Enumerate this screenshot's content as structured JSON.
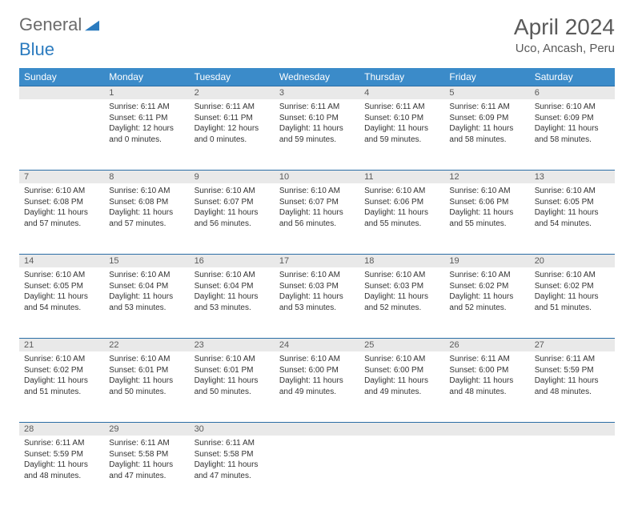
{
  "logo": {
    "text_gray": "General",
    "text_blue": "Blue"
  },
  "header": {
    "month": "April 2024",
    "location": "Uco, Ancash, Peru"
  },
  "colors": {
    "header_bg": "#3b8bc9",
    "header_text": "#ffffff",
    "daynum_bg": "#e9e9e9",
    "daynum_text": "#5a5a5a",
    "daynum_border_top": "#2b6ea6",
    "body_text": "#333333",
    "logo_gray": "#6b6b6b",
    "logo_blue": "#2b7bbf",
    "background": "#ffffff"
  },
  "typography": {
    "month_fontsize": 28,
    "location_fontsize": 15,
    "weekday_fontsize": 12,
    "daynum_fontsize": 11,
    "daydata_fontsize": 10
  },
  "weekdays": [
    "Sunday",
    "Monday",
    "Tuesday",
    "Wednesday",
    "Thursday",
    "Friday",
    "Saturday"
  ],
  "weeks": [
    [
      null,
      {
        "n": "1",
        "sunrise": "6:11 AM",
        "sunset": "6:11 PM",
        "daylight": "12 hours and 0 minutes."
      },
      {
        "n": "2",
        "sunrise": "6:11 AM",
        "sunset": "6:11 PM",
        "daylight": "12 hours and 0 minutes."
      },
      {
        "n": "3",
        "sunrise": "6:11 AM",
        "sunset": "6:10 PM",
        "daylight": "11 hours and 59 minutes."
      },
      {
        "n": "4",
        "sunrise": "6:11 AM",
        "sunset": "6:10 PM",
        "daylight": "11 hours and 59 minutes."
      },
      {
        "n": "5",
        "sunrise": "6:11 AM",
        "sunset": "6:09 PM",
        "daylight": "11 hours and 58 minutes."
      },
      {
        "n": "6",
        "sunrise": "6:10 AM",
        "sunset": "6:09 PM",
        "daylight": "11 hours and 58 minutes."
      }
    ],
    [
      {
        "n": "7",
        "sunrise": "6:10 AM",
        "sunset": "6:08 PM",
        "daylight": "11 hours and 57 minutes."
      },
      {
        "n": "8",
        "sunrise": "6:10 AM",
        "sunset": "6:08 PM",
        "daylight": "11 hours and 57 minutes."
      },
      {
        "n": "9",
        "sunrise": "6:10 AM",
        "sunset": "6:07 PM",
        "daylight": "11 hours and 56 minutes."
      },
      {
        "n": "10",
        "sunrise": "6:10 AM",
        "sunset": "6:07 PM",
        "daylight": "11 hours and 56 minutes."
      },
      {
        "n": "11",
        "sunrise": "6:10 AM",
        "sunset": "6:06 PM",
        "daylight": "11 hours and 55 minutes."
      },
      {
        "n": "12",
        "sunrise": "6:10 AM",
        "sunset": "6:06 PM",
        "daylight": "11 hours and 55 minutes."
      },
      {
        "n": "13",
        "sunrise": "6:10 AM",
        "sunset": "6:05 PM",
        "daylight": "11 hours and 54 minutes."
      }
    ],
    [
      {
        "n": "14",
        "sunrise": "6:10 AM",
        "sunset": "6:05 PM",
        "daylight": "11 hours and 54 minutes."
      },
      {
        "n": "15",
        "sunrise": "6:10 AM",
        "sunset": "6:04 PM",
        "daylight": "11 hours and 53 minutes."
      },
      {
        "n": "16",
        "sunrise": "6:10 AM",
        "sunset": "6:04 PM",
        "daylight": "11 hours and 53 minutes."
      },
      {
        "n": "17",
        "sunrise": "6:10 AM",
        "sunset": "6:03 PM",
        "daylight": "11 hours and 53 minutes."
      },
      {
        "n": "18",
        "sunrise": "6:10 AM",
        "sunset": "6:03 PM",
        "daylight": "11 hours and 52 minutes."
      },
      {
        "n": "19",
        "sunrise": "6:10 AM",
        "sunset": "6:02 PM",
        "daylight": "11 hours and 52 minutes."
      },
      {
        "n": "20",
        "sunrise": "6:10 AM",
        "sunset": "6:02 PM",
        "daylight": "11 hours and 51 minutes."
      }
    ],
    [
      {
        "n": "21",
        "sunrise": "6:10 AM",
        "sunset": "6:02 PM",
        "daylight": "11 hours and 51 minutes."
      },
      {
        "n": "22",
        "sunrise": "6:10 AM",
        "sunset": "6:01 PM",
        "daylight": "11 hours and 50 minutes."
      },
      {
        "n": "23",
        "sunrise": "6:10 AM",
        "sunset": "6:01 PM",
        "daylight": "11 hours and 50 minutes."
      },
      {
        "n": "24",
        "sunrise": "6:10 AM",
        "sunset": "6:00 PM",
        "daylight": "11 hours and 49 minutes."
      },
      {
        "n": "25",
        "sunrise": "6:10 AM",
        "sunset": "6:00 PM",
        "daylight": "11 hours and 49 minutes."
      },
      {
        "n": "26",
        "sunrise": "6:11 AM",
        "sunset": "6:00 PM",
        "daylight": "11 hours and 48 minutes."
      },
      {
        "n": "27",
        "sunrise": "6:11 AM",
        "sunset": "5:59 PM",
        "daylight": "11 hours and 48 minutes."
      }
    ],
    [
      {
        "n": "28",
        "sunrise": "6:11 AM",
        "sunset": "5:59 PM",
        "daylight": "11 hours and 48 minutes."
      },
      {
        "n": "29",
        "sunrise": "6:11 AM",
        "sunset": "5:58 PM",
        "daylight": "11 hours and 47 minutes."
      },
      {
        "n": "30",
        "sunrise": "6:11 AM",
        "sunset": "5:58 PM",
        "daylight": "11 hours and 47 minutes."
      },
      null,
      null,
      null,
      null
    ]
  ],
  "labels": {
    "sunrise": "Sunrise:",
    "sunset": "Sunset:",
    "daylight": "Daylight:"
  }
}
